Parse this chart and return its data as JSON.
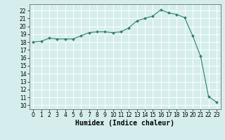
{
  "x": [
    0,
    1,
    2,
    3,
    4,
    5,
    6,
    7,
    8,
    9,
    10,
    11,
    12,
    13,
    14,
    15,
    16,
    17,
    18,
    19,
    20,
    21,
    22,
    23
  ],
  "y": [
    18.0,
    18.1,
    18.5,
    18.4,
    18.4,
    18.4,
    18.8,
    19.2,
    19.3,
    19.3,
    19.2,
    19.3,
    19.8,
    20.7,
    21.0,
    21.3,
    22.1,
    21.7,
    21.5,
    21.1,
    18.8,
    16.2,
    11.1,
    10.4
  ],
  "line_color": "#2e7d6e",
  "marker": "D",
  "marker_size": 2,
  "background_color": "#d5eeed",
  "grid_color": "#b8d8d8",
  "xlabel": "Humidex (Indice chaleur)",
  "xlim": [
    -0.5,
    23.5
  ],
  "ylim": [
    9.5,
    22.8
  ],
  "yticks": [
    10,
    11,
    12,
    13,
    14,
    15,
    16,
    17,
    18,
    19,
    20,
    21,
    22
  ],
  "xticks": [
    0,
    1,
    2,
    3,
    4,
    5,
    6,
    7,
    8,
    9,
    10,
    11,
    12,
    13,
    14,
    15,
    16,
    17,
    18,
    19,
    20,
    21,
    22,
    23
  ],
  "tick_fontsize": 5.5,
  "xlabel_fontsize": 7
}
